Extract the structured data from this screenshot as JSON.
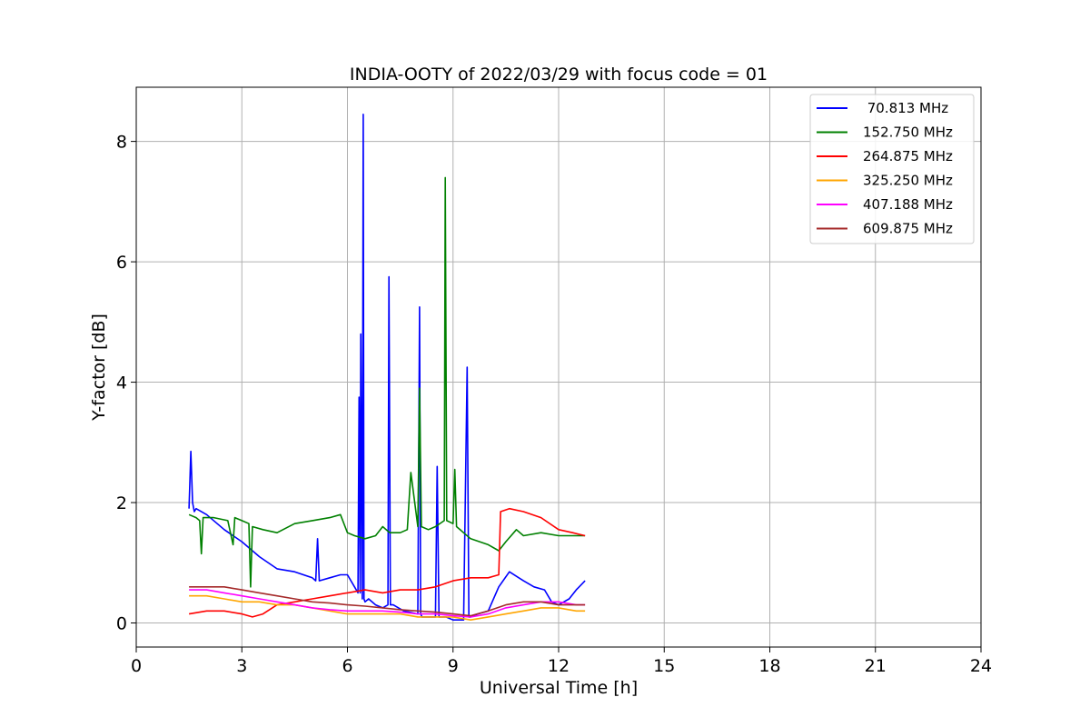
{
  "chart_data": {
    "type": "line",
    "title": "INDIA-OOTY of 2022/03/29 with focus code = 01",
    "xlabel": "Universal Time [h]",
    "ylabel": "Y-factor [dB]",
    "xlim": [
      0,
      24
    ],
    "ylim": [
      -0.4,
      8.9
    ],
    "xticks": [
      0,
      3,
      6,
      9,
      12,
      15,
      18,
      21,
      24
    ],
    "xtick_labels": [
      "0",
      "3",
      "6",
      "9",
      "12",
      "15",
      "18",
      "21",
      "24"
    ],
    "yticks": [
      0,
      2,
      4,
      6,
      8
    ],
    "ytick_labels": [
      "0",
      "2",
      "4",
      "6",
      "8"
    ],
    "grid": true,
    "legend_position": "top-right",
    "series": [
      {
        "name": " 70.813 MHz",
        "color": "#0000ff",
        "x": [
          1.5,
          1.55,
          1.6,
          1.65,
          1.7,
          2.0,
          2.5,
          3.0,
          3.5,
          4.0,
          4.5,
          5.0,
          5.1,
          5.15,
          5.2,
          5.5,
          5.8,
          6.0,
          6.2,
          6.3,
          6.33,
          6.36,
          6.38,
          6.42,
          6.45,
          6.47,
          6.5,
          6.6,
          6.8,
          7.0,
          7.15,
          7.18,
          7.22,
          7.3,
          7.6,
          8.0,
          8.05,
          8.08,
          8.12,
          8.3,
          8.5,
          8.55,
          8.6,
          8.8,
          9.0,
          9.3,
          9.4,
          9.45,
          9.5,
          9.7,
          10.0,
          10.3,
          10.6,
          11.0,
          11.3,
          11.6,
          11.8,
          12.0,
          12.3,
          12.5,
          12.75
        ],
        "y": [
          1.9,
          2.85,
          2.0,
          1.85,
          1.9,
          1.8,
          1.55,
          1.35,
          1.1,
          0.9,
          0.85,
          0.75,
          0.7,
          1.4,
          0.7,
          0.75,
          0.8,
          0.8,
          0.6,
          0.5,
          3.75,
          0.5,
          4.8,
          0.4,
          8.45,
          0.4,
          0.35,
          0.4,
          0.3,
          0.25,
          0.3,
          5.75,
          0.3,
          0.3,
          0.2,
          0.15,
          5.25,
          0.15,
          0.1,
          0.1,
          0.1,
          2.6,
          0.1,
          0.1,
          0.05,
          0.05,
          4.25,
          0.1,
          0.1,
          0.15,
          0.2,
          0.6,
          0.85,
          0.7,
          0.6,
          0.55,
          0.35,
          0.3,
          0.4,
          0.55,
          0.7
        ]
      },
      {
        "name": "152.750 MHz",
        "color": "#008000",
        "x": [
          1.5,
          1.7,
          1.8,
          1.85,
          1.9,
          2.2,
          2.6,
          2.75,
          2.8,
          3.0,
          3.2,
          3.25,
          3.3,
          3.6,
          4.0,
          4.5,
          5.0,
          5.5,
          5.8,
          6.0,
          6.2,
          6.5,
          6.8,
          7.0,
          7.2,
          7.5,
          7.7,
          7.8,
          8.0,
          8.05,
          8.1,
          8.3,
          8.5,
          8.75,
          8.78,
          8.82,
          9.0,
          9.05,
          9.1,
          9.5,
          10.0,
          10.3,
          10.5,
          10.8,
          11.0,
          11.5,
          12.0,
          12.5,
          12.75
        ],
        "y": [
          1.8,
          1.75,
          1.7,
          1.15,
          1.75,
          1.75,
          1.7,
          1.3,
          1.75,
          1.7,
          1.65,
          0.6,
          1.6,
          1.55,
          1.5,
          1.65,
          1.7,
          1.75,
          1.8,
          1.5,
          1.45,
          1.4,
          1.45,
          1.6,
          1.5,
          1.5,
          1.55,
          2.5,
          1.6,
          3.9,
          1.6,
          1.55,
          1.6,
          1.7,
          7.4,
          1.7,
          1.65,
          2.55,
          1.6,
          1.4,
          1.3,
          1.2,
          1.35,
          1.55,
          1.45,
          1.5,
          1.45,
          1.45,
          1.45
        ]
      },
      {
        "name": "264.875 MHz",
        "color": "#ff0000",
        "x": [
          1.5,
          2.0,
          2.5,
          3.0,
          3.3,
          3.6,
          4.0,
          4.5,
          5.0,
          5.5,
          6.0,
          6.5,
          7.0,
          7.5,
          8.0,
          8.5,
          9.0,
          9.5,
          10.0,
          10.3,
          10.35,
          10.6,
          11.0,
          11.5,
          12.0,
          12.4,
          12.75
        ],
        "y": [
          0.15,
          0.2,
          0.2,
          0.15,
          0.1,
          0.15,
          0.3,
          0.35,
          0.4,
          0.45,
          0.5,
          0.55,
          0.5,
          0.55,
          0.55,
          0.6,
          0.7,
          0.75,
          0.75,
          0.8,
          1.85,
          1.9,
          1.85,
          1.75,
          1.55,
          1.5,
          1.45
        ]
      },
      {
        "name": "325.250 MHz",
        "color": "#ffa500",
        "x": [
          1.5,
          2.0,
          2.5,
          3.0,
          3.5,
          4.0,
          4.5,
          5.0,
          5.5,
          6.0,
          6.5,
          7.0,
          7.5,
          8.0,
          8.5,
          9.0,
          9.5,
          10.0,
          10.5,
          11.0,
          11.5,
          12.0,
          12.5,
          12.75
        ],
        "y": [
          0.45,
          0.45,
          0.4,
          0.35,
          0.35,
          0.3,
          0.3,
          0.25,
          0.2,
          0.15,
          0.15,
          0.15,
          0.15,
          0.1,
          0.1,
          0.1,
          0.05,
          0.1,
          0.15,
          0.2,
          0.25,
          0.25,
          0.2,
          0.2
        ]
      },
      {
        "name": "407.188 MHz",
        "color": "#ff00ff",
        "x": [
          1.5,
          2.0,
          2.5,
          3.0,
          3.5,
          4.0,
          4.5,
          5.0,
          5.5,
          6.0,
          6.5,
          7.0,
          7.5,
          8.0,
          8.5,
          9.0,
          9.5,
          10.0,
          10.5,
          11.0,
          11.5,
          12.0,
          12.5,
          12.75
        ],
        "y": [
          0.55,
          0.55,
          0.5,
          0.45,
          0.4,
          0.35,
          0.3,
          0.25,
          0.22,
          0.2,
          0.2,
          0.2,
          0.18,
          0.15,
          0.15,
          0.12,
          0.1,
          0.15,
          0.25,
          0.3,
          0.35,
          0.35,
          0.3,
          0.3
        ]
      },
      {
        "name": "609.875 MHz",
        "color": "#a52a2a",
        "x": [
          1.5,
          2.0,
          2.5,
          3.0,
          3.5,
          4.0,
          4.5,
          5.0,
          5.5,
          6.0,
          6.5,
          7.0,
          7.5,
          8.0,
          8.5,
          9.0,
          9.5,
          10.0,
          10.5,
          11.0,
          11.5,
          12.0,
          12.5,
          12.75
        ],
        "y": [
          0.6,
          0.6,
          0.6,
          0.55,
          0.5,
          0.45,
          0.4,
          0.35,
          0.33,
          0.3,
          0.28,
          0.25,
          0.22,
          0.2,
          0.18,
          0.15,
          0.12,
          0.2,
          0.3,
          0.35,
          0.35,
          0.3,
          0.3,
          0.3
        ]
      }
    ]
  }
}
